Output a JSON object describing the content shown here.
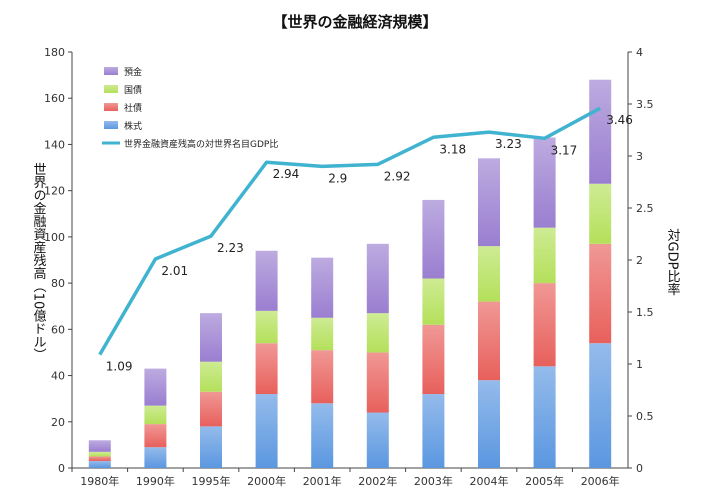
{
  "chart_data": {
    "type": "bar",
    "stacked": true,
    "title": "【世界の金融経済規模】",
    "ylabel": "世界の金融資産残高（10億ドル）",
    "y2label": "対GDP比率",
    "ylim": [
      0,
      180
    ],
    "y2lim": [
      0,
      4
    ],
    "yticks": [
      0,
      20,
      40,
      60,
      80,
      100,
      120,
      140,
      160,
      180
    ],
    "y2ticks": [
      "0",
      "0.5",
      "1",
      "1.5",
      "2",
      "2.5",
      "3",
      "3.5",
      "4"
    ],
    "categories": [
      "1980年",
      "1990年",
      "1995年",
      "2000年",
      "2001年",
      "2002年",
      "2003年",
      "2004年",
      "2005年",
      "2006年"
    ],
    "series": [
      {
        "name": "株式",
        "color": "#5b97e0",
        "values": [
          3,
          9,
          18,
          32,
          28,
          24,
          32,
          38,
          44,
          54
        ]
      },
      {
        "name": "社債",
        "color": "#e8605c",
        "values": [
          2,
          10,
          15,
          22,
          23,
          26,
          30,
          34,
          36,
          43
        ]
      },
      {
        "name": "国債",
        "color": "#b4e05a",
        "values": [
          2,
          8,
          13,
          14,
          14,
          17,
          20,
          24,
          24,
          26
        ]
      },
      {
        "name": "預金",
        "color": "#9a7ed0",
        "values": [
          5,
          16,
          21,
          26,
          26,
          30,
          34,
          38,
          39,
          45
        ]
      }
    ],
    "line": {
      "name": "世界金融資産残高の対世界名目GDP比",
      "color": "#3fb3cf",
      "axis": "right",
      "values": [
        1.09,
        2.01,
        2.23,
        2.94,
        2.9,
        2.92,
        3.18,
        3.23,
        3.17,
        3.46
      ],
      "labels": [
        "1.09",
        "2.01",
        "2.23",
        "2.94",
        "2.9",
        "2.92",
        "3.18",
        "3.23",
        "3.17",
        "3.46"
      ]
    },
    "legend": [
      "預金",
      "国債",
      "社債",
      "株式",
      "世界金融資産残高の対世界名目GDP比"
    ],
    "legend_position": "top-left",
    "grid": false
  }
}
